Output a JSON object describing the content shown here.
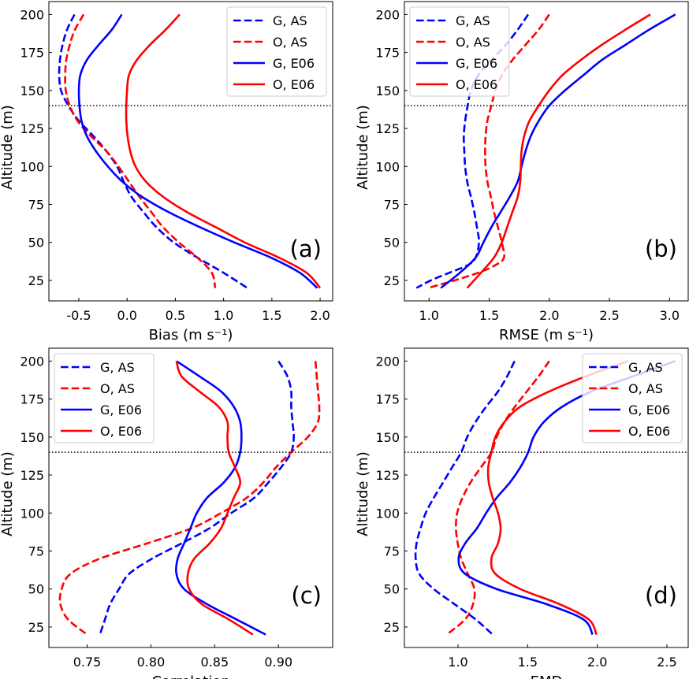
{
  "colors": {
    "G": "#0000ff",
    "O": "#ff0000",
    "reference_line": "#000000"
  },
  "chart_data": [
    {
      "type": "line",
      "panel_label": "(a)",
      "xlabel": "Bias (m s⁻¹)",
      "ylabel": "Altitude (m)",
      "xlim": [
        -0.81,
        2.13
      ],
      "ylim": [
        11.5,
        208.5
      ],
      "xticks": [
        "-0.5",
        "0.0",
        "0.5",
        "1.0",
        "1.5",
        "2.0"
      ],
      "xtick_values": [
        -0.5,
        0.0,
        0.5,
        1.0,
        1.5,
        2.0
      ],
      "yticks": [
        "25",
        "50",
        "75",
        "100",
        "125",
        "150",
        "175",
        "200"
      ],
      "ytick_values": [
        25,
        50,
        75,
        100,
        125,
        150,
        175,
        200
      ],
      "reference_altitude": 140,
      "legend": "top-right",
      "grid": false,
      "series": [
        {
          "name": "G, AS",
          "color": "#0000ff",
          "style": "dashed",
          "altitude": [
            200,
            190,
            180,
            170,
            160,
            150,
            140,
            130,
            120,
            110,
            100,
            90,
            80,
            70,
            60,
            50,
            40,
            30,
            20
          ],
          "values": [
            -0.545,
            -0.622,
            -0.668,
            -0.695,
            -0.703,
            -0.684,
            -0.608,
            -0.499,
            -0.349,
            -0.213,
            -0.104,
            -0.035,
            0.046,
            0.169,
            0.305,
            0.483,
            0.728,
            1.0,
            1.246
          ]
        },
        {
          "name": "O, AS",
          "color": "#ff0000",
          "style": "dashed",
          "altitude": [
            200,
            190,
            180,
            170,
            160,
            150,
            140,
            130,
            120,
            110,
            100,
            90,
            80,
            70,
            60,
            50,
            40,
            30,
            20
          ],
          "values": [
            -0.45,
            -0.54,
            -0.594,
            -0.63,
            -0.641,
            -0.635,
            -0.594,
            -0.513,
            -0.376,
            -0.213,
            -0.09,
            0.019,
            0.128,
            0.251,
            0.373,
            0.537,
            0.728,
            0.878,
            0.913
          ]
        },
        {
          "name": "G, E06",
          "color": "#0000ff",
          "style": "solid",
          "altitude": [
            200,
            190,
            180,
            170,
            160,
            150,
            140,
            130,
            120,
            110,
            100,
            90,
            80,
            70,
            60,
            50,
            40,
            30,
            20
          ],
          "values": [
            -0.055,
            -0.158,
            -0.294,
            -0.417,
            -0.485,
            -0.499,
            -0.493,
            -0.472,
            -0.417,
            -0.322,
            -0.199,
            -0.049,
            0.155,
            0.428,
            0.755,
            1.11,
            1.49,
            1.79,
            1.97
          ]
        },
        {
          "name": "O, E06",
          "color": "#ff0000",
          "style": "solid",
          "altitude": [
            200,
            190,
            180,
            170,
            160,
            150,
            140,
            130,
            120,
            110,
            100,
            90,
            80,
            70,
            60,
            50,
            40,
            30,
            20
          ],
          "values": [
            0.545,
            0.4,
            0.237,
            0.101,
            0.019,
            0.0,
            -0.008,
            -0.008,
            0.005,
            0.033,
            0.087,
            0.196,
            0.374,
            0.619,
            0.919,
            1.219,
            1.573,
            1.86,
            2.0
          ]
        }
      ]
    },
    {
      "type": "line",
      "panel_label": "(b)",
      "xlabel": "RMSE (m s⁻¹)",
      "ylabel": "Altitude (m)",
      "xlim": [
        0.795,
        3.155
      ],
      "ylim": [
        11.5,
        208.5
      ],
      "xticks": [
        "1.0",
        "1.5",
        "2.0",
        "2.5",
        "3.0"
      ],
      "xtick_values": [
        1.0,
        1.5,
        2.0,
        2.5,
        3.0
      ],
      "yticks": [
        "25",
        "50",
        "75",
        "100",
        "125",
        "150",
        "175",
        "200"
      ],
      "ytick_values": [
        25,
        50,
        75,
        100,
        125,
        150,
        175,
        200
      ],
      "reference_altitude": 140,
      "legend": "top-left",
      "grid": false,
      "series": [
        {
          "name": "G, AS",
          "color": "#0000ff",
          "style": "dashed",
          "altitude": [
            200,
            190,
            180,
            170,
            160,
            150,
            140,
            130,
            120,
            110,
            100,
            90,
            80,
            70,
            60,
            50,
            40,
            35,
            30,
            25,
            20
          ],
          "values": [
            1.824,
            1.737,
            1.638,
            1.518,
            1.409,
            1.348,
            1.321,
            1.3,
            1.289,
            1.293,
            1.3,
            1.317,
            1.348,
            1.376,
            1.398,
            1.415,
            1.387,
            1.321,
            1.168,
            1.015,
            0.895
          ]
        },
        {
          "name": "O, AS",
          "color": "#ff0000",
          "style": "dashed",
          "altitude": [
            200,
            190,
            180,
            170,
            160,
            150,
            140,
            130,
            120,
            110,
            100,
            90,
            80,
            70,
            60,
            50,
            40,
            35,
            30,
            25,
            20
          ],
          "values": [
            1.999,
            1.911,
            1.802,
            1.693,
            1.605,
            1.551,
            1.518,
            1.485,
            1.47,
            1.466,
            1.47,
            1.485,
            1.514,
            1.54,
            1.573,
            1.605,
            1.623,
            1.551,
            1.409,
            1.212,
            0.993
          ]
        },
        {
          "name": "G, E06",
          "color": "#0000ff",
          "style": "solid",
          "altitude": [
            200,
            190,
            180,
            170,
            160,
            150,
            140,
            130,
            120,
            110,
            100,
            90,
            80,
            70,
            60,
            50,
            40,
            30,
            20
          ],
          "values": [
            3.048,
            2.83,
            2.633,
            2.436,
            2.283,
            2.13,
            1.999,
            1.912,
            1.846,
            1.802,
            1.769,
            1.737,
            1.671,
            1.595,
            1.518,
            1.452,
            1.387,
            1.256,
            1.098
          ]
        },
        {
          "name": "O, E06",
          "color": "#ff0000",
          "style": "solid",
          "altitude": [
            200,
            190,
            180,
            170,
            160,
            150,
            140,
            130,
            120,
            110,
            100,
            90,
            80,
            70,
            60,
            50,
            40,
            30,
            20
          ],
          "values": [
            2.84,
            2.633,
            2.436,
            2.261,
            2.108,
            1.999,
            1.912,
            1.835,
            1.791,
            1.769,
            1.763,
            1.758,
            1.737,
            1.693,
            1.649,
            1.605,
            1.54,
            1.431,
            1.317
          ]
        }
      ]
    },
    {
      "type": "line",
      "panel_label": "(c)",
      "xlabel": "Correlation",
      "ylabel": "Altitude (m)",
      "xlim": [
        0.72,
        0.9425
      ],
      "ylim": [
        11.5,
        208.5
      ],
      "xticks": [
        "0.75",
        "0.80",
        "0.85",
        "0.90"
      ],
      "xtick_values": [
        0.75,
        0.8,
        0.85,
        0.9
      ],
      "yticks": [
        "25",
        "50",
        "75",
        "100",
        "125",
        "150",
        "175",
        "200"
      ],
      "ytick_values": [
        25,
        50,
        75,
        100,
        125,
        150,
        175,
        200
      ],
      "reference_altitude": 140,
      "legend": "top-left",
      "grid": false,
      "series": [
        {
          "name": "G, AS",
          "color": "#0000ff",
          "style": "dashed",
          "altitude": [
            200,
            190,
            180,
            170,
            160,
            150,
            140,
            130,
            120,
            110,
            100,
            90,
            80,
            70,
            60,
            50,
            40,
            30,
            20
          ],
          "values": [
            0.9,
            0.907,
            0.91,
            0.91,
            0.911,
            0.912,
            0.91,
            0.902,
            0.892,
            0.881,
            0.863,
            0.846,
            0.824,
            0.801,
            0.783,
            0.775,
            0.768,
            0.764,
            0.76
          ]
        },
        {
          "name": "O, AS",
          "color": "#ff0000",
          "style": "dashed",
          "altitude": [
            200,
            190,
            180,
            170,
            160,
            150,
            140,
            130,
            120,
            110,
            100,
            90,
            80,
            70,
            60,
            50,
            40,
            30,
            20
          ],
          "values": [
            0.929,
            0.93,
            0.931,
            0.932,
            0.931,
            0.923,
            0.91,
            0.898,
            0.888,
            0.875,
            0.855,
            0.832,
            0.797,
            0.76,
            0.737,
            0.73,
            0.729,
            0.735,
            0.75
          ]
        },
        {
          "name": "G, E06",
          "color": "#0000ff",
          "style": "solid",
          "altitude": [
            200,
            190,
            180,
            170,
            160,
            150,
            140,
            130,
            120,
            110,
            100,
            90,
            80,
            70,
            60,
            50,
            40,
            30,
            20
          ],
          "values": [
            0.82,
            0.838,
            0.855,
            0.865,
            0.87,
            0.871,
            0.87,
            0.866,
            0.857,
            0.844,
            0.836,
            0.831,
            0.826,
            0.821,
            0.82,
            0.826,
            0.844,
            0.867,
            0.89
          ]
        },
        {
          "name": "O, E06",
          "color": "#ff0000",
          "style": "solid",
          "altitude": [
            200,
            190,
            180,
            170,
            160,
            150,
            140,
            130,
            120,
            110,
            100,
            90,
            80,
            70,
            60,
            50,
            40,
            30,
            20
          ],
          "values": [
            0.82,
            0.824,
            0.838,
            0.853,
            0.86,
            0.86,
            0.861,
            0.866,
            0.87,
            0.865,
            0.86,
            0.855,
            0.846,
            0.834,
            0.829,
            0.83,
            0.84,
            0.861,
            0.88
          ]
        }
      ]
    },
    {
      "type": "line",
      "panel_label": "(d)",
      "xlabel": "EMD",
      "ylabel": "Altitude (m)",
      "xlim": [
        0.615,
        2.653
      ],
      "ylim": [
        11.5,
        208.5
      ],
      "xticks": [
        "1.0",
        "1.5",
        "2.0",
        "2.5"
      ],
      "xtick_values": [
        1.0,
        1.5,
        2.0,
        2.5
      ],
      "yticks": [
        "25",
        "50",
        "75",
        "100",
        "125",
        "150",
        "175",
        "200"
      ],
      "ytick_values": [
        25,
        50,
        75,
        100,
        125,
        150,
        175,
        200
      ],
      "reference_altitude": 140,
      "legend": "top-right",
      "grid": false,
      "series": [
        {
          "name": "G, AS",
          "color": "#0000ff",
          "style": "dashed",
          "altitude": [
            200,
            190,
            180,
            170,
            160,
            150,
            140,
            130,
            120,
            110,
            100,
            90,
            80,
            70,
            60,
            50,
            40,
            30,
            20
          ],
          "values": [
            1.406,
            1.353,
            1.287,
            1.202,
            1.126,
            1.066,
            1.023,
            0.957,
            0.892,
            0.826,
            0.768,
            0.731,
            0.702,
            0.696,
            0.721,
            0.825,
            0.975,
            1.126,
            1.249
          ]
        },
        {
          "name": "O, AS",
          "color": "#ff0000",
          "style": "dashed",
          "altitude": [
            200,
            190,
            180,
            170,
            160,
            150,
            140,
            130,
            120,
            110,
            100,
            90,
            80,
            70,
            60,
            50,
            40,
            30,
            20
          ],
          "values": [
            1.655,
            1.579,
            1.494,
            1.409,
            1.334,
            1.277,
            1.24,
            1.164,
            1.089,
            1.032,
            0.994,
            0.985,
            0.998,
            1.023,
            1.07,
            1.117,
            1.108,
            1.051,
            0.919
          ]
        },
        {
          "name": "G, E06",
          "color": "#0000ff",
          "style": "solid",
          "altitude": [
            200,
            190,
            180,
            170,
            160,
            150,
            140,
            130,
            120,
            110,
            100,
            90,
            80,
            70,
            60,
            50,
            40,
            30,
            20
          ],
          "values": [
            2.56,
            2.258,
            1.957,
            1.749,
            1.617,
            1.542,
            1.504,
            1.447,
            1.372,
            1.277,
            1.202,
            1.136,
            1.051,
            1.004,
            1.051,
            1.277,
            1.636,
            1.9,
            1.966
          ]
        },
        {
          "name": "O, E06",
          "color": "#ff0000",
          "style": "solid",
          "altitude": [
            200,
            190,
            180,
            170,
            160,
            150,
            140,
            130,
            120,
            110,
            100,
            90,
            80,
            70,
            60,
            50,
            40,
            30,
            20
          ],
          "values": [
            2.221,
            1.919,
            1.655,
            1.447,
            1.334,
            1.268,
            1.24,
            1.217,
            1.221,
            1.249,
            1.287,
            1.306,
            1.287,
            1.24,
            1.268,
            1.447,
            1.73,
            1.938,
            1.994
          ]
        }
      ]
    }
  ]
}
